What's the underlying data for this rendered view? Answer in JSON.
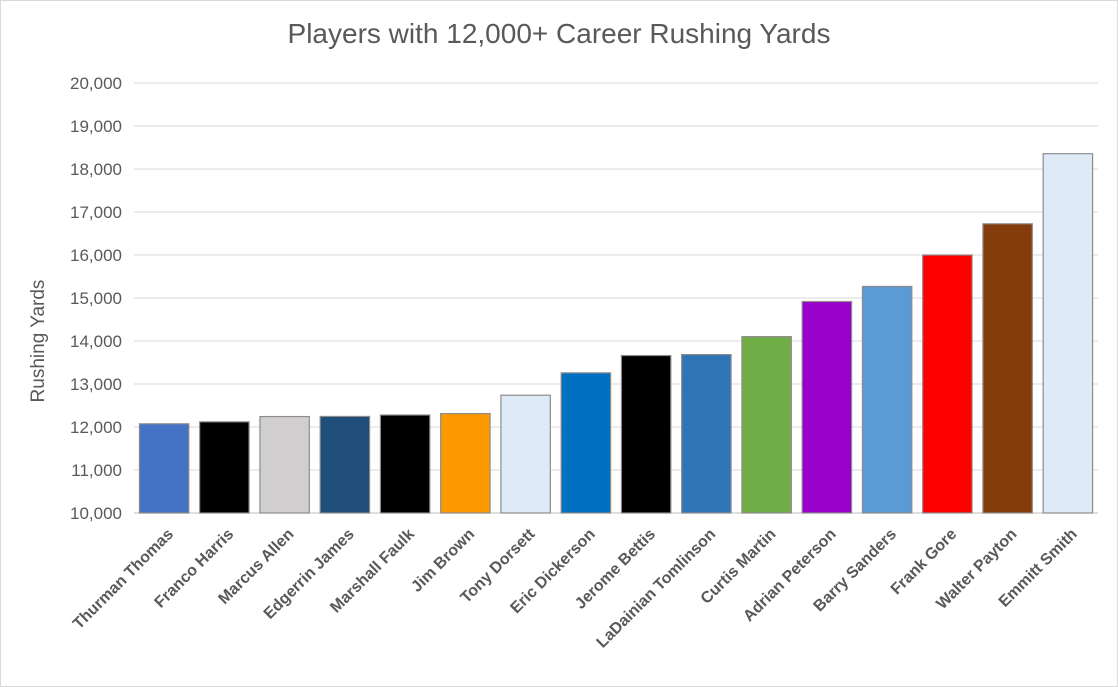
{
  "chart_data": {
    "type": "bar",
    "title": "Players with 12,000+ Career Rushing Yards",
    "xlabel": "",
    "ylabel": "Rushing Yards",
    "ylim": [
      10000,
      20000
    ],
    "ytick_labels": [
      "10,000",
      "11,000",
      "12,000",
      "13,000",
      "14,000",
      "15,000",
      "16,000",
      "17,000",
      "18,000",
      "19,000",
      "20,000"
    ],
    "grid": true,
    "legend": "none",
    "categories": [
      "Thurman Thomas",
      "Franco Harris",
      "Marcus Allen",
      "Edgerrin James",
      "Marshall Faulk",
      "Jim Brown",
      "Tony Dorsett",
      "Eric Dickerson",
      "Jerome Bettis",
      "LaDainian Tomlinson",
      "Curtis Martin",
      "Adrian Peterson",
      "Barry Sanders",
      "Frank Gore",
      "Walter Payton",
      "Emmitt Smith"
    ],
    "values": [
      12074,
      12120,
      12243,
      12246,
      12279,
      12312,
      12739,
      13259,
      13662,
      13684,
      14101,
      14918,
      15269,
      16000,
      16726,
      18355
    ],
    "colors": [
      "#4472C4",
      "#000000",
      "#D0CECE",
      "#1F4E79",
      "#000000",
      "#FF9900",
      "#DEEBF7",
      "#0070C0",
      "#000000",
      "#2E75B6",
      "#70AD47",
      "#9900CC",
      "#5B9BD5",
      "#FF0000",
      "#843C0C",
      "#DEEBF7"
    ]
  }
}
